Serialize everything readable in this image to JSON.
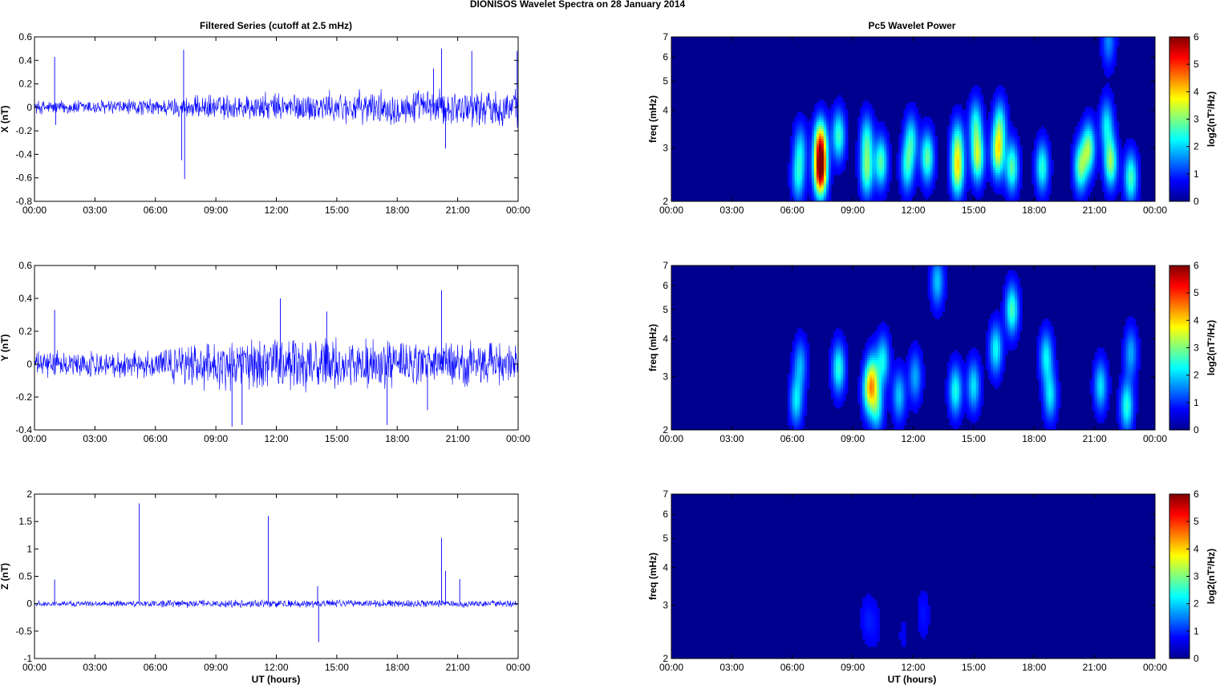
{
  "figure": {
    "title": "DIONISOS Wavelet Spectra on 28 January   2014",
    "left_title": "Filtered Series (cutoff at 2.5 mHz)",
    "right_title": "Pc5 Wavelet Power",
    "xlabel": "UT (hours)",
    "freq_label": "freq (mHz)",
    "colorbar_label": "log2(nT²/Hz)",
    "x_ticks": [
      "00:00",
      "03:00",
      "06:00",
      "09:00",
      "12:00",
      "15:00",
      "18:00",
      "21:00",
      "00:00"
    ],
    "freq_ticks": [
      "2",
      "3",
      "4",
      "5",
      "6",
      "7"
    ],
    "colorbar_ticks": [
      "0",
      "1",
      "2",
      "3",
      "4",
      "5",
      "6"
    ],
    "colors": {
      "line": "#0000ff",
      "background": "#00008f"
    }
  },
  "chart_data": [
    {
      "type": "line",
      "panel": "X",
      "ylabel": "X (nT)",
      "ylim": [
        -0.8,
        0.6
      ],
      "y_ticks": [
        "0.6",
        "0.4",
        "0.2",
        "0",
        "-0.2",
        "-0.4",
        "-0.6",
        "-0.8"
      ],
      "noise_profile": {
        "x_hours": [
          0,
          6,
          9,
          12,
          18,
          24
        ],
        "amplitude_nT": [
          0.05,
          0.06,
          0.09,
          0.1,
          0.12,
          0.13
        ]
      },
      "spikes": [
        {
          "x_hours": 1.0,
          "y": 0.43
        },
        {
          "x_hours": 1.05,
          "y": -0.15
        },
        {
          "x_hours": 7.4,
          "y": 0.49
        },
        {
          "x_hours": 7.45,
          "y": -0.61
        },
        {
          "x_hours": 7.3,
          "y": -0.45
        },
        {
          "x_hours": 20.2,
          "y": 0.5
        },
        {
          "x_hours": 21.7,
          "y": 0.48
        },
        {
          "x_hours": 23.95,
          "y": 0.48
        },
        {
          "x_hours": 20.4,
          "y": -0.35
        },
        {
          "x_hours": 19.8,
          "y": 0.33
        }
      ]
    },
    {
      "type": "line",
      "panel": "Y",
      "ylabel": "Y (nT)",
      "ylim": [
        -0.4,
        0.6
      ],
      "y_ticks": [
        "0.6",
        "0.4",
        "0.2",
        "0",
        "-0.2",
        "-0.4"
      ],
      "noise_profile": {
        "x_hours": [
          0,
          6,
          9,
          12,
          18,
          24
        ],
        "amplitude_nT": [
          0.06,
          0.07,
          0.13,
          0.13,
          0.12,
          0.1
        ]
      },
      "spikes": [
        {
          "x_hours": 1.0,
          "y": 0.33
        },
        {
          "x_hours": 9.8,
          "y": -0.38
        },
        {
          "x_hours": 10.3,
          "y": -0.37
        },
        {
          "x_hours": 12.2,
          "y": 0.4
        },
        {
          "x_hours": 20.2,
          "y": 0.45
        },
        {
          "x_hours": 17.5,
          "y": -0.37
        },
        {
          "x_hours": 14.5,
          "y": 0.32
        },
        {
          "x_hours": 19.5,
          "y": -0.28
        }
      ]
    },
    {
      "type": "line",
      "panel": "Z",
      "ylabel": "Z (nT)",
      "ylim": [
        -1,
        2
      ],
      "y_ticks": [
        "2",
        "1.5",
        "1",
        "0.5",
        "0",
        "-0.5",
        "-1"
      ],
      "noise_profile": {
        "x_hours": [
          0,
          6,
          9,
          12,
          18,
          24
        ],
        "amplitude_nT": [
          0.04,
          0.05,
          0.06,
          0.06,
          0.06,
          0.05
        ]
      },
      "spikes": [
        {
          "x_hours": 1.0,
          "y": 0.44
        },
        {
          "x_hours": 5.2,
          "y": 1.83
        },
        {
          "x_hours": 11.6,
          "y": 1.6
        },
        {
          "x_hours": 14.1,
          "y": -0.7
        },
        {
          "x_hours": 14.05,
          "y": 0.32
        },
        {
          "x_hours": 20.2,
          "y": 1.2
        },
        {
          "x_hours": 21.1,
          "y": 0.45
        },
        {
          "x_hours": 20.4,
          "y": 0.6
        }
      ]
    },
    {
      "type": "heatmap",
      "panel": "X",
      "x_range_hours": [
        0,
        24
      ],
      "freq_range_mHz": [
        2,
        7
      ],
      "freq_scale": "log",
      "color_range": [
        0,
        6
      ],
      "colormap": "jet",
      "blobs": [
        {
          "t": 6.3,
          "f": 2.4,
          "p": 1.8
        },
        {
          "t": 6.4,
          "f": 3.0,
          "p": 1.5
        },
        {
          "t": 7.4,
          "f": 2.5,
          "p": 5.6
        },
        {
          "t": 7.4,
          "f": 3.1,
          "p": 4.2
        },
        {
          "t": 8.3,
          "f": 3.3,
          "p": 2.3
        },
        {
          "t": 9.7,
          "f": 2.5,
          "p": 2.4
        },
        {
          "t": 9.7,
          "f": 3.2,
          "p": 2.0
        },
        {
          "t": 10.4,
          "f": 2.7,
          "p": 2.5
        },
        {
          "t": 11.7,
          "f": 2.6,
          "p": 2.0
        },
        {
          "t": 11.9,
          "f": 3.2,
          "p": 1.9
        },
        {
          "t": 12.7,
          "f": 2.8,
          "p": 2.6
        },
        {
          "t": 14.2,
          "f": 2.5,
          "p": 3.0
        },
        {
          "t": 14.2,
          "f": 3.1,
          "p": 2.2
        },
        {
          "t": 15.2,
          "f": 2.8,
          "p": 3.0
        },
        {
          "t": 15.1,
          "f": 3.6,
          "p": 2.0
        },
        {
          "t": 16.2,
          "f": 2.9,
          "p": 3.2
        },
        {
          "t": 16.3,
          "f": 3.6,
          "p": 2.0
        },
        {
          "t": 16.9,
          "f": 2.6,
          "p": 2.5
        },
        {
          "t": 18.4,
          "f": 2.6,
          "p": 2.2
        },
        {
          "t": 20.3,
          "f": 2.6,
          "p": 2.6
        },
        {
          "t": 20.7,
          "f": 3.0,
          "p": 2.8
        },
        {
          "t": 21.8,
          "f": 2.7,
          "p": 2.9
        },
        {
          "t": 21.6,
          "f": 3.6,
          "p": 1.8
        },
        {
          "t": 22.8,
          "f": 2.4,
          "p": 2.4
        },
        {
          "t": 21.7,
          "f": 6.8,
          "p": 1.2
        }
      ]
    },
    {
      "type": "heatmap",
      "panel": "Y",
      "x_range_hours": [
        0,
        24
      ],
      "freq_range_mHz": [
        2,
        7
      ],
      "freq_scale": "log",
      "color_range": [
        0,
        6
      ],
      "colormap": "jet",
      "blobs": [
        {
          "t": 6.2,
          "f": 2.5,
          "p": 1.8
        },
        {
          "t": 6.4,
          "f": 3.3,
          "p": 1.4
        },
        {
          "t": 8.3,
          "f": 3.2,
          "p": 2.2
        },
        {
          "t": 9.8,
          "f": 2.7,
          "p": 2.6
        },
        {
          "t": 10.0,
          "f": 3.0,
          "p": 2.2
        },
        {
          "t": 10.2,
          "f": 2.4,
          "p": 2.0
        },
        {
          "t": 10.5,
          "f": 3.4,
          "p": 1.9
        },
        {
          "t": 11.3,
          "f": 2.6,
          "p": 1.6
        },
        {
          "t": 12.1,
          "f": 3.0,
          "p": 1.4
        },
        {
          "t": 13.2,
          "f": 6.2,
          "p": 1.6
        },
        {
          "t": 14.1,
          "f": 2.7,
          "p": 2.1
        },
        {
          "t": 15.0,
          "f": 2.8,
          "p": 1.8
        },
        {
          "t": 16.1,
          "f": 3.7,
          "p": 2.0
        },
        {
          "t": 16.9,
          "f": 5.0,
          "p": 2.4
        },
        {
          "t": 18.6,
          "f": 3.5,
          "p": 1.9
        },
        {
          "t": 18.8,
          "f": 2.6,
          "p": 1.8
        },
        {
          "t": 21.3,
          "f": 2.8,
          "p": 1.8
        },
        {
          "t": 22.6,
          "f": 2.4,
          "p": 2.2
        },
        {
          "t": 22.8,
          "f": 3.6,
          "p": 1.4
        }
      ]
    },
    {
      "type": "heatmap",
      "panel": "Z",
      "x_range_hours": [
        0,
        24
      ],
      "freq_range_mHz": [
        2,
        7
      ],
      "freq_scale": "log",
      "color_range": [
        0,
        6
      ],
      "colormap": "jet",
      "blobs": [
        {
          "t": 9.7,
          "f": 2.7,
          "p": 0.4
        },
        {
          "t": 10.1,
          "f": 2.6,
          "p": 0.3
        },
        {
          "t": 12.5,
          "f": 2.8,
          "p": 0.4
        },
        {
          "t": 11.5,
          "f": 2.4,
          "p": 0.2
        }
      ]
    }
  ]
}
